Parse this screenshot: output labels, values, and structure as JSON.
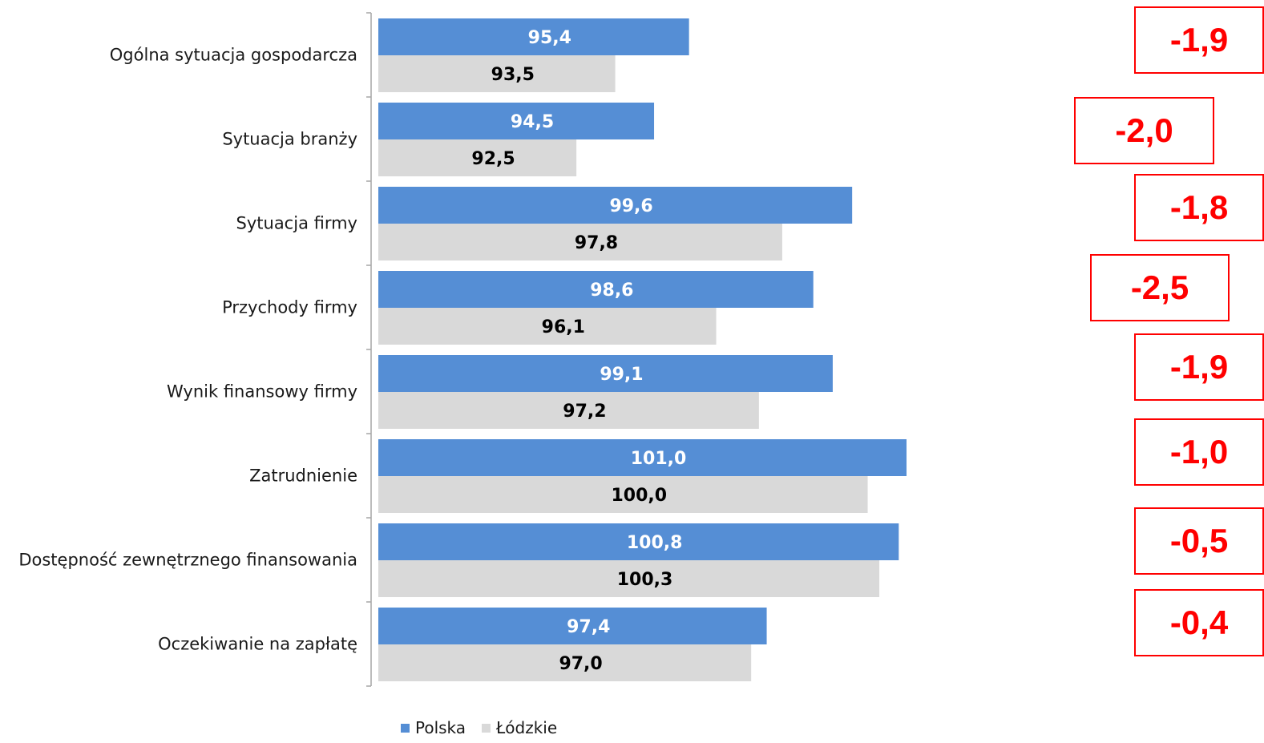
{
  "chart_data": {
    "type": "bar",
    "orientation": "horizontal",
    "categories": [
      "Ogólna sytuacja gospodarcza",
      "Sytuacja branży",
      "Sytuacja firmy",
      "Przychody firmy",
      "Wynik finansowy firmy",
      "Zatrudnienie",
      "Dostępność zewnętrznego finansowania",
      "Oczekiwanie na zapłatę"
    ],
    "series": [
      {
        "name": "Polska",
        "values": [
          95.4,
          94.5,
          99.6,
          98.6,
          99.1,
          101.0,
          100.8,
          97.4
        ],
        "labels": [
          "95,4",
          "94,5",
          "99,6",
          "98,6",
          "99,1",
          "101,0",
          "100,8",
          "97,4"
        ],
        "color": "#558ed5",
        "label_color": "#ffffff"
      },
      {
        "name": "Łódzkie",
        "values": [
          93.5,
          92.5,
          97.8,
          96.1,
          97.2,
          100.0,
          100.3,
          97.0
        ],
        "labels": [
          "93,5",
          "92,5",
          "97,8",
          "96,1",
          "97,2",
          "100,0",
          "100,3",
          "97,0"
        ],
        "color": "#d9d9d9",
        "label_color": "#000000"
      }
    ],
    "differences": [
      "-1,9",
      "-2,0",
      "-1,8",
      "-2,5",
      "-1,9",
      "-1,0",
      "-0,5",
      "-0,4"
    ],
    "difference_color": "#ff0000",
    "legend_position": "bottom",
    "grid": false
  }
}
